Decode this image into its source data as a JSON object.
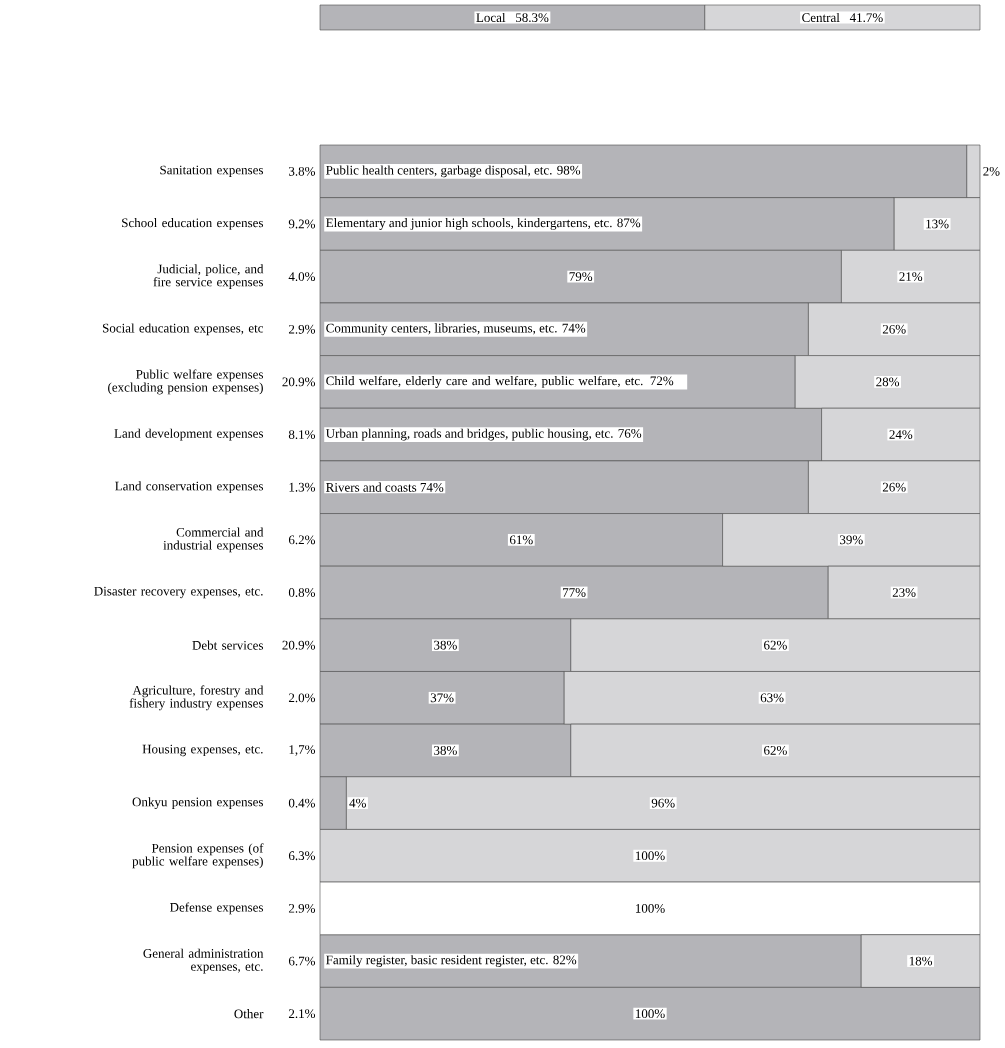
{
  "chart_data": [
    {
      "type": "bar",
      "orientation": "horizontal",
      "stacked": true,
      "categories": [
        null
      ],
      "series": [
        {
          "name": "Local",
          "color": "#b4b4b8",
          "values": [
            58.3
          ],
          "value_labels": [
            "58.3%"
          ]
        },
        {
          "name": "Central",
          "color": "#d6d6d8",
          "values": [
            41.7
          ],
          "value_labels": [
            "41.7%"
          ]
        }
      ]
    },
    {
      "type": "bar",
      "orientation": "horizontal",
      "stacked": true,
      "categories": [
        "Sanitation expenses",
        "School education expenses",
        "Judicial, police, and fire service expenses",
        "Social education expenses, etc",
        "Public welfare expenses (excluding pension expenses)",
        "Land development expenses",
        "Land conservation expenses",
        "Commercial and industrial expenses",
        "Disaster recovery expenses, etc.",
        "Debt services",
        "Agriculture, forestry and fishery industry expenses",
        "Housing expenses, etc.",
        "Onkyu pension expenses",
        "Pension expenses (of public welfare expenses)",
        "Defense expenses",
        "General administration expenses, etc.",
        "Other"
      ],
      "annotations": [
        "3.8%",
        "9.2%",
        "4.0%",
        "2.9%",
        "20.9%",
        "8.1%",
        "1.3%",
        "6.2%",
        "0.8%",
        "20.9%",
        "2.0%",
        "1,7%",
        "0.4%",
        "6.3%",
        "2.9%",
        "6.7%",
        "2.1%"
      ],
      "series": [
        {
          "color": "#b4b4b8",
          "values": [
            98,
            87,
            79,
            74,
            72,
            76,
            74,
            61,
            77,
            38,
            37,
            38,
            4,
            0,
            0,
            82,
            100
          ],
          "value_labels": [
            "Public health centers, garbage disposal, etc. 98%",
            "Elementary and junior high schools, kindergartens, etc. 87%",
            "79%",
            "Community centers, libraries, museums, etc. 74%",
            "Child welfare, elderly care and welfare, public welfare, etc. 72%",
            "Urban planning, roads and bridges, public housing, etc. 76%",
            "Rivers and coasts 74%",
            "61%",
            "77%",
            "38%",
            "37%",
            "38%",
            "4%",
            null,
            null,
            "Family register, basic resident register, etc. 82%",
            "100%"
          ]
        },
        {
          "colors": [
            "#d6d6d8",
            "#d6d6d8",
            "#d6d6d8",
            "#d6d6d8",
            "#d6d6d8",
            "#d6d6d8",
            "#d6d6d8",
            "#d6d6d8",
            "#d6d6d8",
            "#d6d6d8",
            "#d6d6d8",
            "#d6d6d8",
            "#d6d6d8",
            "#d6d6d8",
            "#ffffff",
            "#d6d6d8",
            "#d6d6d8"
          ],
          "values": [
            2,
            13,
            21,
            26,
            28,
            24,
            26,
            39,
            23,
            62,
            63,
            62,
            96,
            100,
            100,
            18,
            0
          ],
          "value_labels": [
            "2%",
            "13%",
            "21%",
            "26%",
            "28%",
            "24%",
            "26%",
            "39%",
            "23%",
            "62%",
            "63%",
            "62%",
            "96%",
            "100%",
            "100%",
            "18%",
            null
          ]
        }
      ]
    }
  ]
}
